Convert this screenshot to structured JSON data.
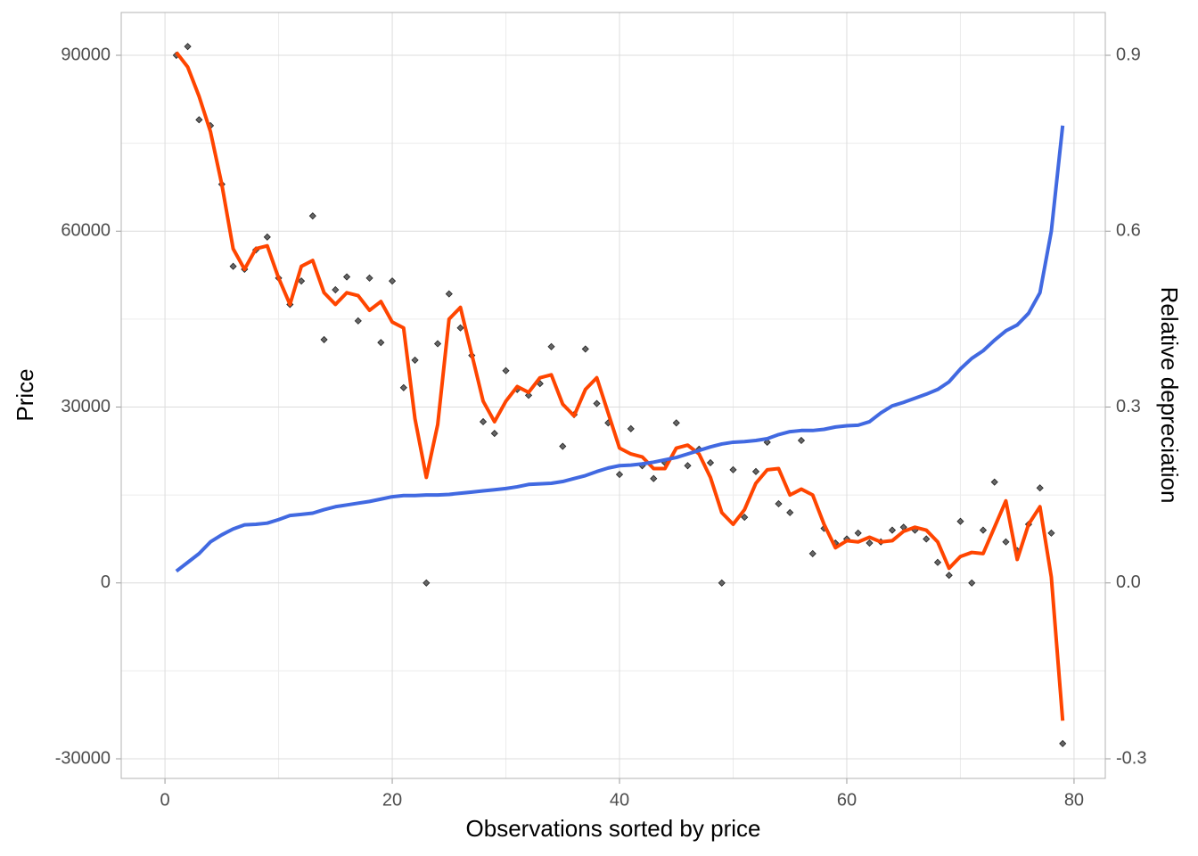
{
  "chart_data": {
    "type": "line",
    "x_label": "Observations sorted by price",
    "y_label": "Price",
    "y2_label": "Relative depreciation",
    "x": [
      1,
      2,
      3,
      4,
      5,
      6,
      7,
      8,
      9,
      10,
      11,
      12,
      13,
      14,
      15,
      16,
      17,
      18,
      19,
      20,
      21,
      22,
      23,
      24,
      25,
      26,
      27,
      28,
      29,
      30,
      31,
      32,
      33,
      34,
      35,
      36,
      37,
      38,
      39,
      40,
      41,
      42,
      43,
      44,
      45,
      46,
      47,
      48,
      49,
      50,
      51,
      52,
      53,
      54,
      55,
      56,
      57,
      58,
      59,
      60,
      61,
      62,
      63,
      64,
      65,
      66,
      67,
      68,
      69,
      70,
      71,
      72,
      73,
      74,
      75,
      76,
      77,
      78,
      79
    ],
    "series": [
      {
        "type": "scatter",
        "color": "#666666",
        "values": [
          90000,
          91500,
          79000,
          78000,
          68000,
          54000,
          53500,
          56800,
          59000,
          52000,
          47500,
          51500,
          62600,
          41500,
          50000,
          52200,
          44700,
          52000,
          41000,
          51500,
          33300,
          38000,
          0,
          40800,
          49300,
          43500,
          38800,
          27500,
          25500,
          36200,
          33000,
          32000,
          34000,
          40300,
          23300,
          28700,
          39900,
          30600,
          27300,
          18500,
          26300,
          20000,
          17800,
          20500,
          27300,
          20000,
          22800,
          20500,
          0,
          19300,
          11200,
          19000,
          24000,
          13500,
          12000,
          24300,
          5000,
          9300,
          6800,
          7500,
          8500,
          6800,
          7000,
          9000,
          9500,
          9000,
          7500,
          3500,
          1300,
          10500,
          0,
          9000,
          17200,
          7000,
          5500,
          10000,
          16200,
          8500,
          -27400
        ]
      },
      {
        "type": "line",
        "color": "#ff4500",
        "values": [
          90500,
          88000,
          83000,
          77000,
          68000,
          57000,
          53500,
          57000,
          57500,
          52000,
          47500,
          54000,
          55000,
          49500,
          47500,
          49500,
          49000,
          46500,
          48000,
          44500,
          43500,
          28000,
          18000,
          27000,
          45000,
          47000,
          39000,
          31000,
          27500,
          31000,
          33500,
          32500,
          35000,
          35500,
          30500,
          28500,
          33000,
          35000,
          29000,
          23000,
          22000,
          21500,
          19500,
          19500,
          23000,
          23500,
          22000,
          18000,
          12000,
          10000,
          12500,
          17000,
          19300,
          19500,
          15000,
          16000,
          15000,
          10000,
          6000,
          7200,
          7000,
          7800,
          7000,
          7200,
          8800,
          9500,
          9000,
          7000,
          2500,
          4500,
          5200,
          5000,
          9500,
          14000,
          4000,
          10000,
          13000,
          1000,
          -23500
        ]
      },
      {
        "type": "line",
        "color": "#4169e1",
        "axis": "y2",
        "values": [
          0.02,
          0.035,
          0.05,
          0.07,
          0.082,
          0.092,
          0.099,
          0.1,
          0.102,
          0.108,
          0.115,
          0.117,
          0.119,
          0.125,
          0.13,
          0.133,
          0.136,
          0.139,
          0.143,
          0.147,
          0.149,
          0.149,
          0.15,
          0.15,
          0.151,
          0.153,
          0.155,
          0.157,
          0.159,
          0.161,
          0.164,
          0.168,
          0.169,
          0.17,
          0.173,
          0.178,
          0.183,
          0.19,
          0.196,
          0.2,
          0.201,
          0.203,
          0.206,
          0.21,
          0.214,
          0.22,
          0.226,
          0.232,
          0.237,
          0.24,
          0.241,
          0.243,
          0.246,
          0.253,
          0.258,
          0.26,
          0.26,
          0.262,
          0.266,
          0.268,
          0.269,
          0.275,
          0.29,
          0.302,
          0.308,
          0.315,
          0.322,
          0.33,
          0.343,
          0.365,
          0.383,
          0.396,
          0.414,
          0.43,
          0.44,
          0.46,
          0.495,
          0.6,
          0.78
        ]
      }
    ],
    "xlim": [
      -3.85,
      82.75
    ],
    "xticks": [
      0,
      20,
      40,
      60,
      80
    ],
    "ylim": [
      -33345,
      97300
    ],
    "yticks": [
      -30000,
      0,
      30000,
      60000,
      90000
    ],
    "y2lim": [
      -0.33345,
      0.973
    ],
    "y2ticks": [
      -0.3,
      {
        "value": 0,
        "label": "0.0"
      },
      0.3,
      0.6,
      0.9
    ],
    "grid": true
  }
}
